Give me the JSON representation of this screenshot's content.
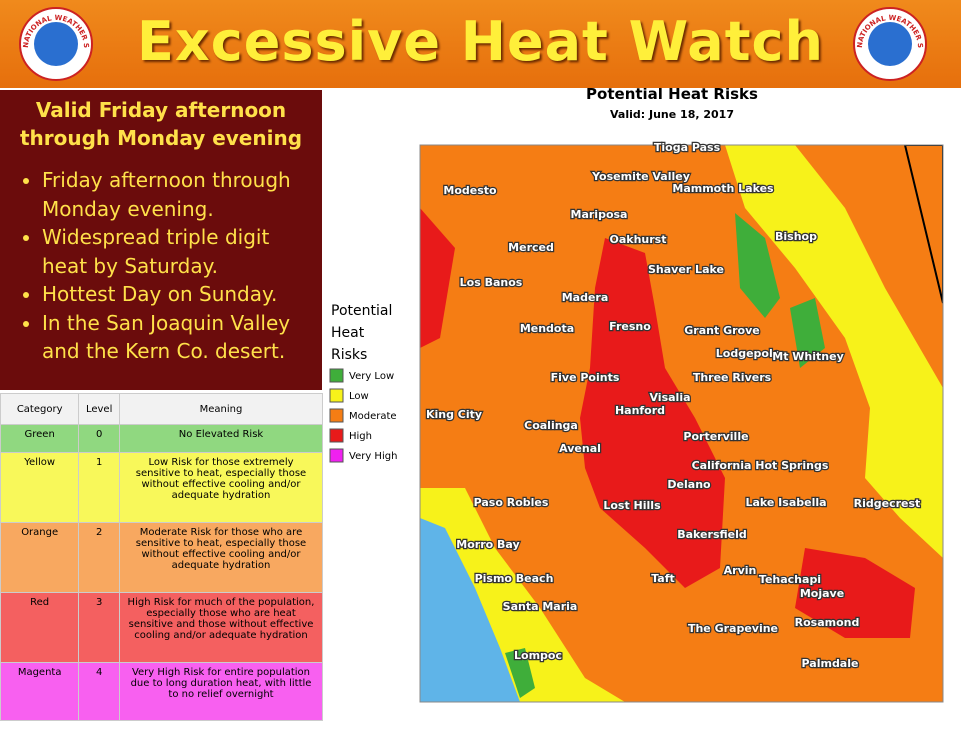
{
  "header": {
    "title": "Excessive Heat Watch",
    "logo_text": "NATIONAL WEATHER SERVICE"
  },
  "summary": {
    "heading": "Valid Friday afternoon through Monday evening",
    "bullets": [
      "Friday afternoon through Monday evening.",
      "Widespread triple digit heat by Saturday.",
      "Hottest Day on Sunday.",
      "In the San Joaquin Valley and the Kern Co. desert."
    ]
  },
  "table": {
    "columns": [
      "Category",
      "Level",
      "Meaning"
    ],
    "rows": [
      [
        "Green",
        "0",
        "No Elevated Risk"
      ],
      [
        "Yellow",
        "1",
        "Low Risk for those extremely sensitive to heat, especially those without effective cooling and/or adequate hydration"
      ],
      [
        "Orange",
        "2",
        "Moderate Risk for those who are sensitive to heat, especially those without effective cooling and/or adequate hydration"
      ],
      [
        "Red",
        "3",
        "High Risk for much of the population, especially those who are heat sensitive and those without effective cooling and/or adequate hydration"
      ],
      [
        "Magenta",
        "4",
        "Very High Risk for entire population due to long duration heat, with little to no relief overnight"
      ]
    ]
  },
  "map": {
    "title": "Potential Heat Risks",
    "subtitle": "Valid: June 18, 2017",
    "legend": {
      "title": "Potential Heat Risks",
      "items": [
        "Very Low",
        "Low",
        "Moderate",
        "High",
        "Very High"
      ]
    },
    "places": [
      "Tioga Pass",
      "Yosemite Valley",
      "Mammoth Lakes",
      "Modesto",
      "Mariposa",
      "Bishop",
      "Oakhurst",
      "Merced",
      "Shaver Lake",
      "Los Banos",
      "Madera",
      "Fresno",
      "Grant Grove",
      "Mendota",
      "Lodgepole",
      "Mt Whitney",
      "Five Points",
      "Three Rivers",
      "Visalia",
      "Hanford",
      "King City",
      "Coalinga",
      "Porterville",
      "Avenal",
      "California Hot Springs",
      "Delano",
      "Paso Robles",
      "Lost Hills",
      "Lake Isabella",
      "Ridgecrest",
      "Bakersfield",
      "Morro Bay",
      "Arvin",
      "Tehachapi",
      "Pismo Beach",
      "Taft",
      "Mojave",
      "Santa Maria",
      "Rosamond",
      "The Grapevine",
      "Lompoc",
      "Palmdale"
    ]
  }
}
